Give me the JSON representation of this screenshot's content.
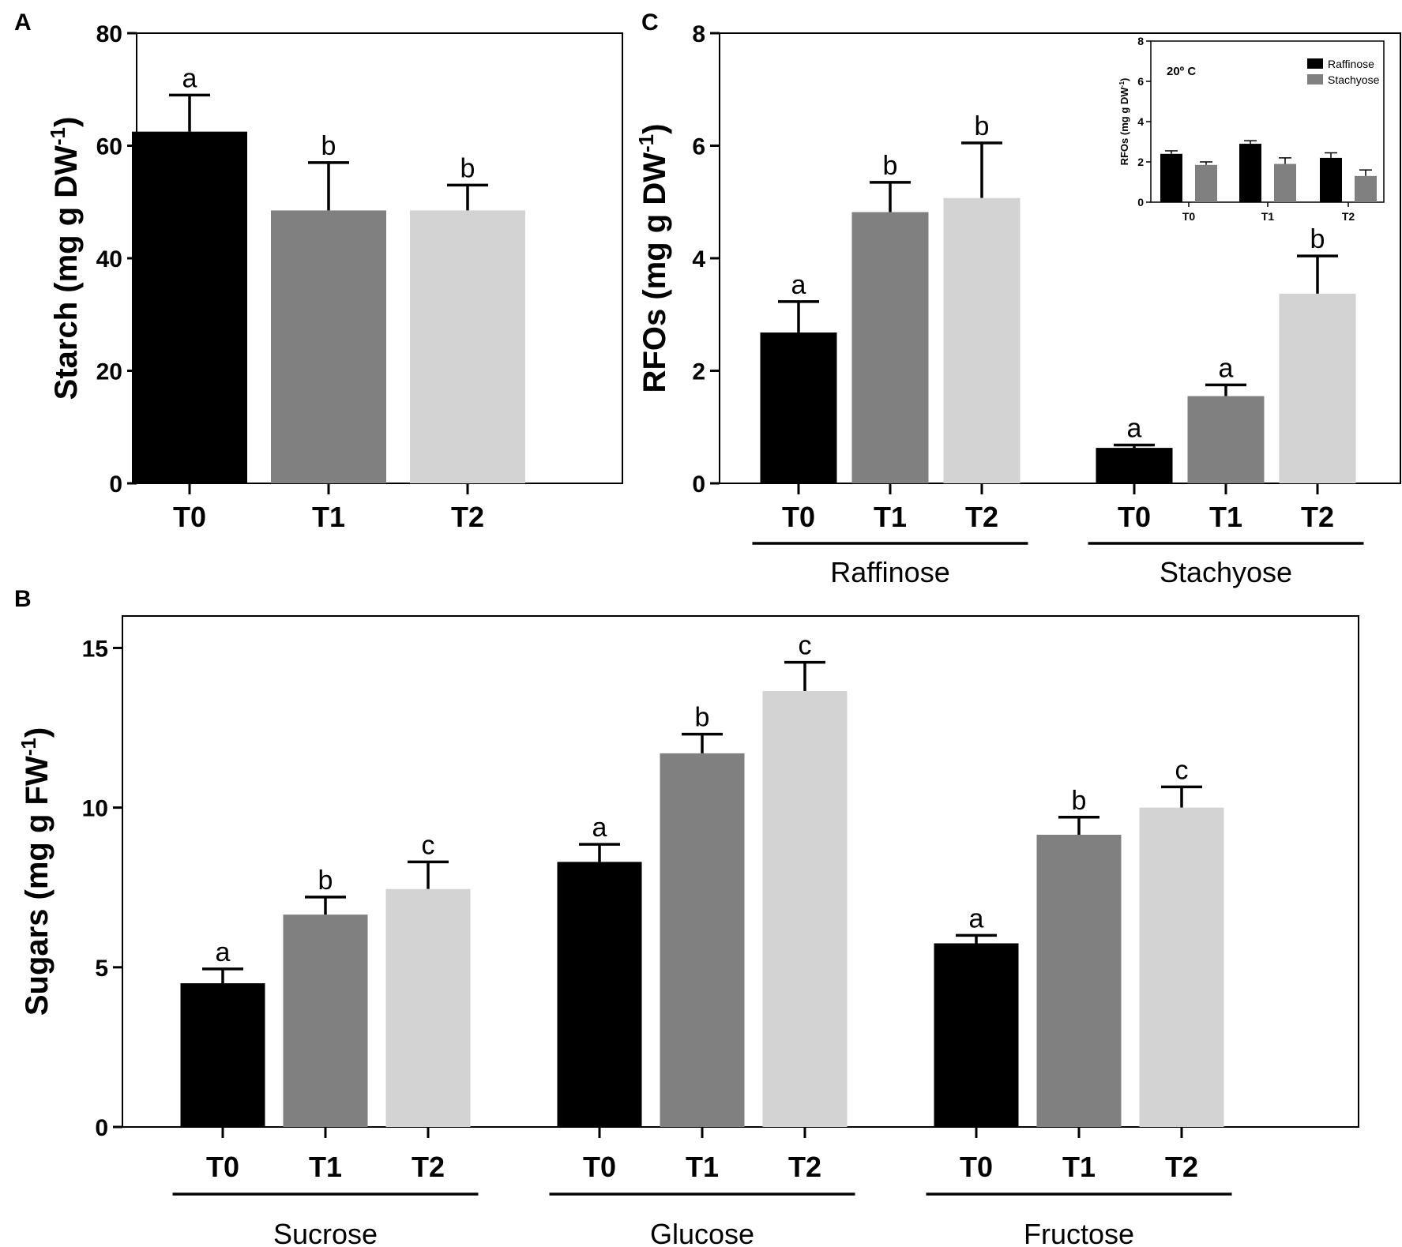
{
  "figure": {
    "panel_labels": [
      "A",
      "B",
      "C"
    ]
  },
  "chart_data": [
    {
      "id": "A",
      "type": "bar",
      "ylabel": "Starch (mg g DW",
      "ylabel_sup": "-1",
      "ylabel_tail": ")",
      "ylim": [
        0,
        80
      ],
      "yticks": [
        0,
        20,
        40,
        60,
        80
      ],
      "categories": [
        "T0",
        "T1",
        "T2"
      ],
      "groups": [
        {
          "name": "",
          "bars": [
            {
              "category": "T0",
              "value": 62.5,
              "error": 6.5,
              "letter": "a",
              "color": "#000000"
            },
            {
              "category": "T1",
              "value": 48.5,
              "error": 8.5,
              "letter": "b",
              "color": "#808080"
            },
            {
              "category": "T2",
              "value": 48.5,
              "error": 4.5,
              "letter": "b",
              "color": "#d3d3d3"
            }
          ]
        }
      ]
    },
    {
      "id": "C",
      "type": "bar",
      "ylabel": "RFOs (mg g DW",
      "ylabel_sup": "-1",
      "ylabel_tail": ")",
      "ylim": [
        0,
        8
      ],
      "yticks": [
        0,
        2,
        4,
        6,
        8
      ],
      "categories": [
        "T0",
        "T1",
        "T2"
      ],
      "groups": [
        {
          "name": "Raffinose",
          "bars": [
            {
              "category": "T0",
              "value": 2.68,
              "error": 0.55,
              "letter": "a",
              "color": "#000000"
            },
            {
              "category": "T1",
              "value": 4.82,
              "error": 0.53,
              "letter": "b",
              "color": "#808080"
            },
            {
              "category": "T2",
              "value": 5.07,
              "error": 0.98,
              "letter": "b",
              "color": "#d3d3d3"
            }
          ]
        },
        {
          "name": "Stachyose",
          "bars": [
            {
              "category": "T0",
              "value": 0.63,
              "error": 0.05,
              "letter": "a",
              "color": "#000000"
            },
            {
              "category": "T1",
              "value": 1.55,
              "error": 0.2,
              "letter": "a",
              "color": "#808080"
            },
            {
              "category": "T2",
              "value": 3.37,
              "error": 0.67,
              "letter": "b",
              "color": "#d3d3d3"
            }
          ]
        }
      ],
      "inset": {
        "type": "bar",
        "title": "20º C",
        "ylabel": "RFOs (mg g DW",
        "ylabel_sup": "-1",
        "ylabel_tail": ")",
        "ylim": [
          0,
          8
        ],
        "yticks": [
          0,
          2,
          4,
          6,
          8
        ],
        "categories": [
          "T0",
          "T1",
          "T2"
        ],
        "legend": [
          {
            "label": "Raffinose",
            "color": "#000000"
          },
          {
            "label": "Stachyose",
            "color": "#808080"
          }
        ],
        "series": [
          {
            "name": "Raffinose",
            "values": [
              2.4,
              2.9,
              2.2
            ],
            "errors": [
              0.15,
              0.15,
              0.25
            ]
          },
          {
            "name": "Stachyose",
            "values": [
              1.85,
              1.9,
              1.3
            ],
            "errors": [
              0.15,
              0.3,
              0.3
            ]
          }
        ]
      }
    },
    {
      "id": "B",
      "type": "bar",
      "ylabel": "Sugars (mg g FW",
      "ylabel_sup": "-1",
      "ylabel_tail": ")",
      "ylim": [
        0,
        16
      ],
      "yticks": [
        0,
        5,
        10,
        15
      ],
      "categories": [
        "T0",
        "T1",
        "T2"
      ],
      "groups": [
        {
          "name": "Sucrose",
          "bars": [
            {
              "category": "T0",
              "value": 4.5,
              "error": 0.45,
              "letter": "a",
              "color": "#000000"
            },
            {
              "category": "T1",
              "value": 6.65,
              "error": 0.55,
              "letter": "b",
              "color": "#808080"
            },
            {
              "category": "T2",
              "value": 7.45,
              "error": 0.85,
              "letter": "c",
              "color": "#d3d3d3"
            }
          ]
        },
        {
          "name": "Glucose",
          "bars": [
            {
              "category": "T0",
              "value": 8.3,
              "error": 0.55,
              "letter": "a",
              "color": "#000000"
            },
            {
              "category": "T1",
              "value": 11.7,
              "error": 0.6,
              "letter": "b",
              "color": "#808080"
            },
            {
              "category": "T2",
              "value": 13.65,
              "error": 0.9,
              "letter": "c",
              "color": "#d3d3d3"
            }
          ]
        },
        {
          "name": "Fructose",
          "bars": [
            {
              "category": "T0",
              "value": 5.75,
              "error": 0.25,
              "letter": "a",
              "color": "#000000"
            },
            {
              "category": "T1",
              "value": 9.15,
              "error": 0.55,
              "letter": "b",
              "color": "#808080"
            },
            {
              "category": "T2",
              "value": 10.0,
              "error": 0.65,
              "letter": "c",
              "color": "#d3d3d3"
            }
          ]
        }
      ]
    }
  ]
}
